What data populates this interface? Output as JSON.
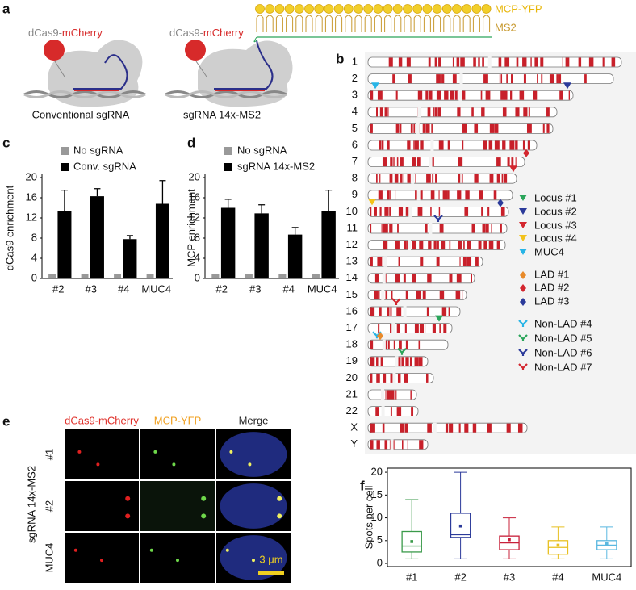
{
  "panel_labels": [
    "a",
    "b",
    "c",
    "d",
    "e",
    "f"
  ],
  "panel_a": {
    "fusion_prefix": "dCas9-",
    "fusion_suffix": "mCherry",
    "left_caption": "Conventional sgRNA",
    "right_caption": "sgRNA 14x-MS2",
    "mcp_label": "MCP-YFP",
    "ms2_label": "MS2"
  },
  "panel_b": {
    "chromosomes": [
      "1",
      "2",
      "3",
      "4",
      "5",
      "6",
      "7",
      "8",
      "9",
      "10",
      "11",
      "12",
      "13",
      "14",
      "15",
      "16",
      "17",
      "18",
      "19",
      "20",
      "21",
      "22",
      "X",
      "Y"
    ],
    "band_color": "#c8202a",
    "legend": [
      {
        "label": "Locus #1",
        "color": "#2aa55a",
        "shape": "triangle"
      },
      {
        "label": "Locus #2",
        "color": "#2b3a9a",
        "shape": "triangle"
      },
      {
        "label": "Locus #3",
        "color": "#d3262e",
        "shape": "triangle"
      },
      {
        "label": "Locus #4",
        "color": "#f2c21b",
        "shape": "triangle"
      },
      {
        "label": "MUC4",
        "color": "#27b4e6",
        "shape": "triangle"
      },
      {
        "label": "LAD #1",
        "color": "#e88a2a",
        "shape": "diamond"
      },
      {
        "label": "LAD #2",
        "color": "#d3262e",
        "shape": "diamond"
      },
      {
        "label": "LAD #3",
        "color": "#2b3a9a",
        "shape": "diamond"
      },
      {
        "label": "Non-LAD #4",
        "color": "#27b4e6",
        "shape": "arrow"
      },
      {
        "label": "Non-LAD #5",
        "color": "#2aa55a",
        "shape": "arrow"
      },
      {
        "label": "Non-LAD #6",
        "color": "#2b3a9a",
        "shape": "arrow"
      },
      {
        "label": "Non-LAD #7",
        "color": "#d3262e",
        "shape": "arrow"
      }
    ]
  },
  "panel_e": {
    "columns": [
      "dCas9-mCherry",
      "MCP-YFP",
      "Merge"
    ],
    "column_colors": [
      "#e0302a",
      "#f0a020",
      "#ffffff"
    ],
    "rows": [
      "#1",
      "#2",
      "MUC4"
    ],
    "row_group": "sgRNA 14x-MS2",
    "scale_bar": "3 μm"
  },
  "chart_data": [
    {
      "type": "bar",
      "ylabel": "dCas9 enrichment",
      "categories": [
        "#2",
        "#3",
        "#4",
        "MUC4"
      ],
      "series": [
        {
          "name": "No sgRNA",
          "color": "#999999",
          "values": [
            0.9,
            0.9,
            0.9,
            0.9
          ]
        },
        {
          "name": "Conv. sgRNA",
          "color": "#000000",
          "values": [
            13.4,
            16.3,
            7.8,
            14.8
          ],
          "errors": [
            4.1,
            1.5,
            0.7,
            4.6
          ]
        }
      ],
      "ylim": [
        0,
        20
      ],
      "yticks": [
        0,
        4,
        8,
        12,
        16,
        20
      ],
      "legend": "upper left"
    },
    {
      "type": "bar",
      "ylabel": "MCP enrichment",
      "categories": [
        "#2",
        "#3",
        "#4",
        "MUC4"
      ],
      "series": [
        {
          "name": "No sgRNA",
          "color": "#999999",
          "values": [
            0.9,
            0.9,
            0.9,
            0.9
          ]
        },
        {
          "name": "sgRNA 14x-MS2",
          "color": "#000000",
          "values": [
            14.0,
            12.9,
            8.7,
            13.3
          ],
          "errors": [
            1.7,
            1.7,
            1.4,
            4.2
          ]
        }
      ],
      "ylim": [
        0,
        20
      ],
      "yticks": [
        0,
        4,
        8,
        12,
        16,
        20
      ],
      "legend": "upper left"
    },
    {
      "type": "box",
      "ylabel": "Spots per cell",
      "categories": [
        "#1",
        "#2",
        "#3",
        "#4",
        "MUC4"
      ],
      "colors": [
        "#3a9a4a",
        "#2b3a9a",
        "#c8203a",
        "#e8c020",
        "#5ab8e0"
      ],
      "whisker_low": [
        1,
        1,
        1,
        1,
        1
      ],
      "q1": [
        2.5,
        5.7,
        3,
        2,
        3
      ],
      "median": [
        3.8,
        6.3,
        4.5,
        3.5,
        4
      ],
      "q3": [
        7,
        11,
        6,
        5,
        5
      ],
      "whisker_high": [
        14,
        20,
        10,
        8,
        8
      ],
      "mean": [
        4.8,
        8.2,
        5.2,
        4,
        4.3
      ],
      "ylim": [
        -0.7,
        20.9
      ],
      "yticks": [
        0,
        5,
        10,
        15,
        20
      ]
    }
  ]
}
